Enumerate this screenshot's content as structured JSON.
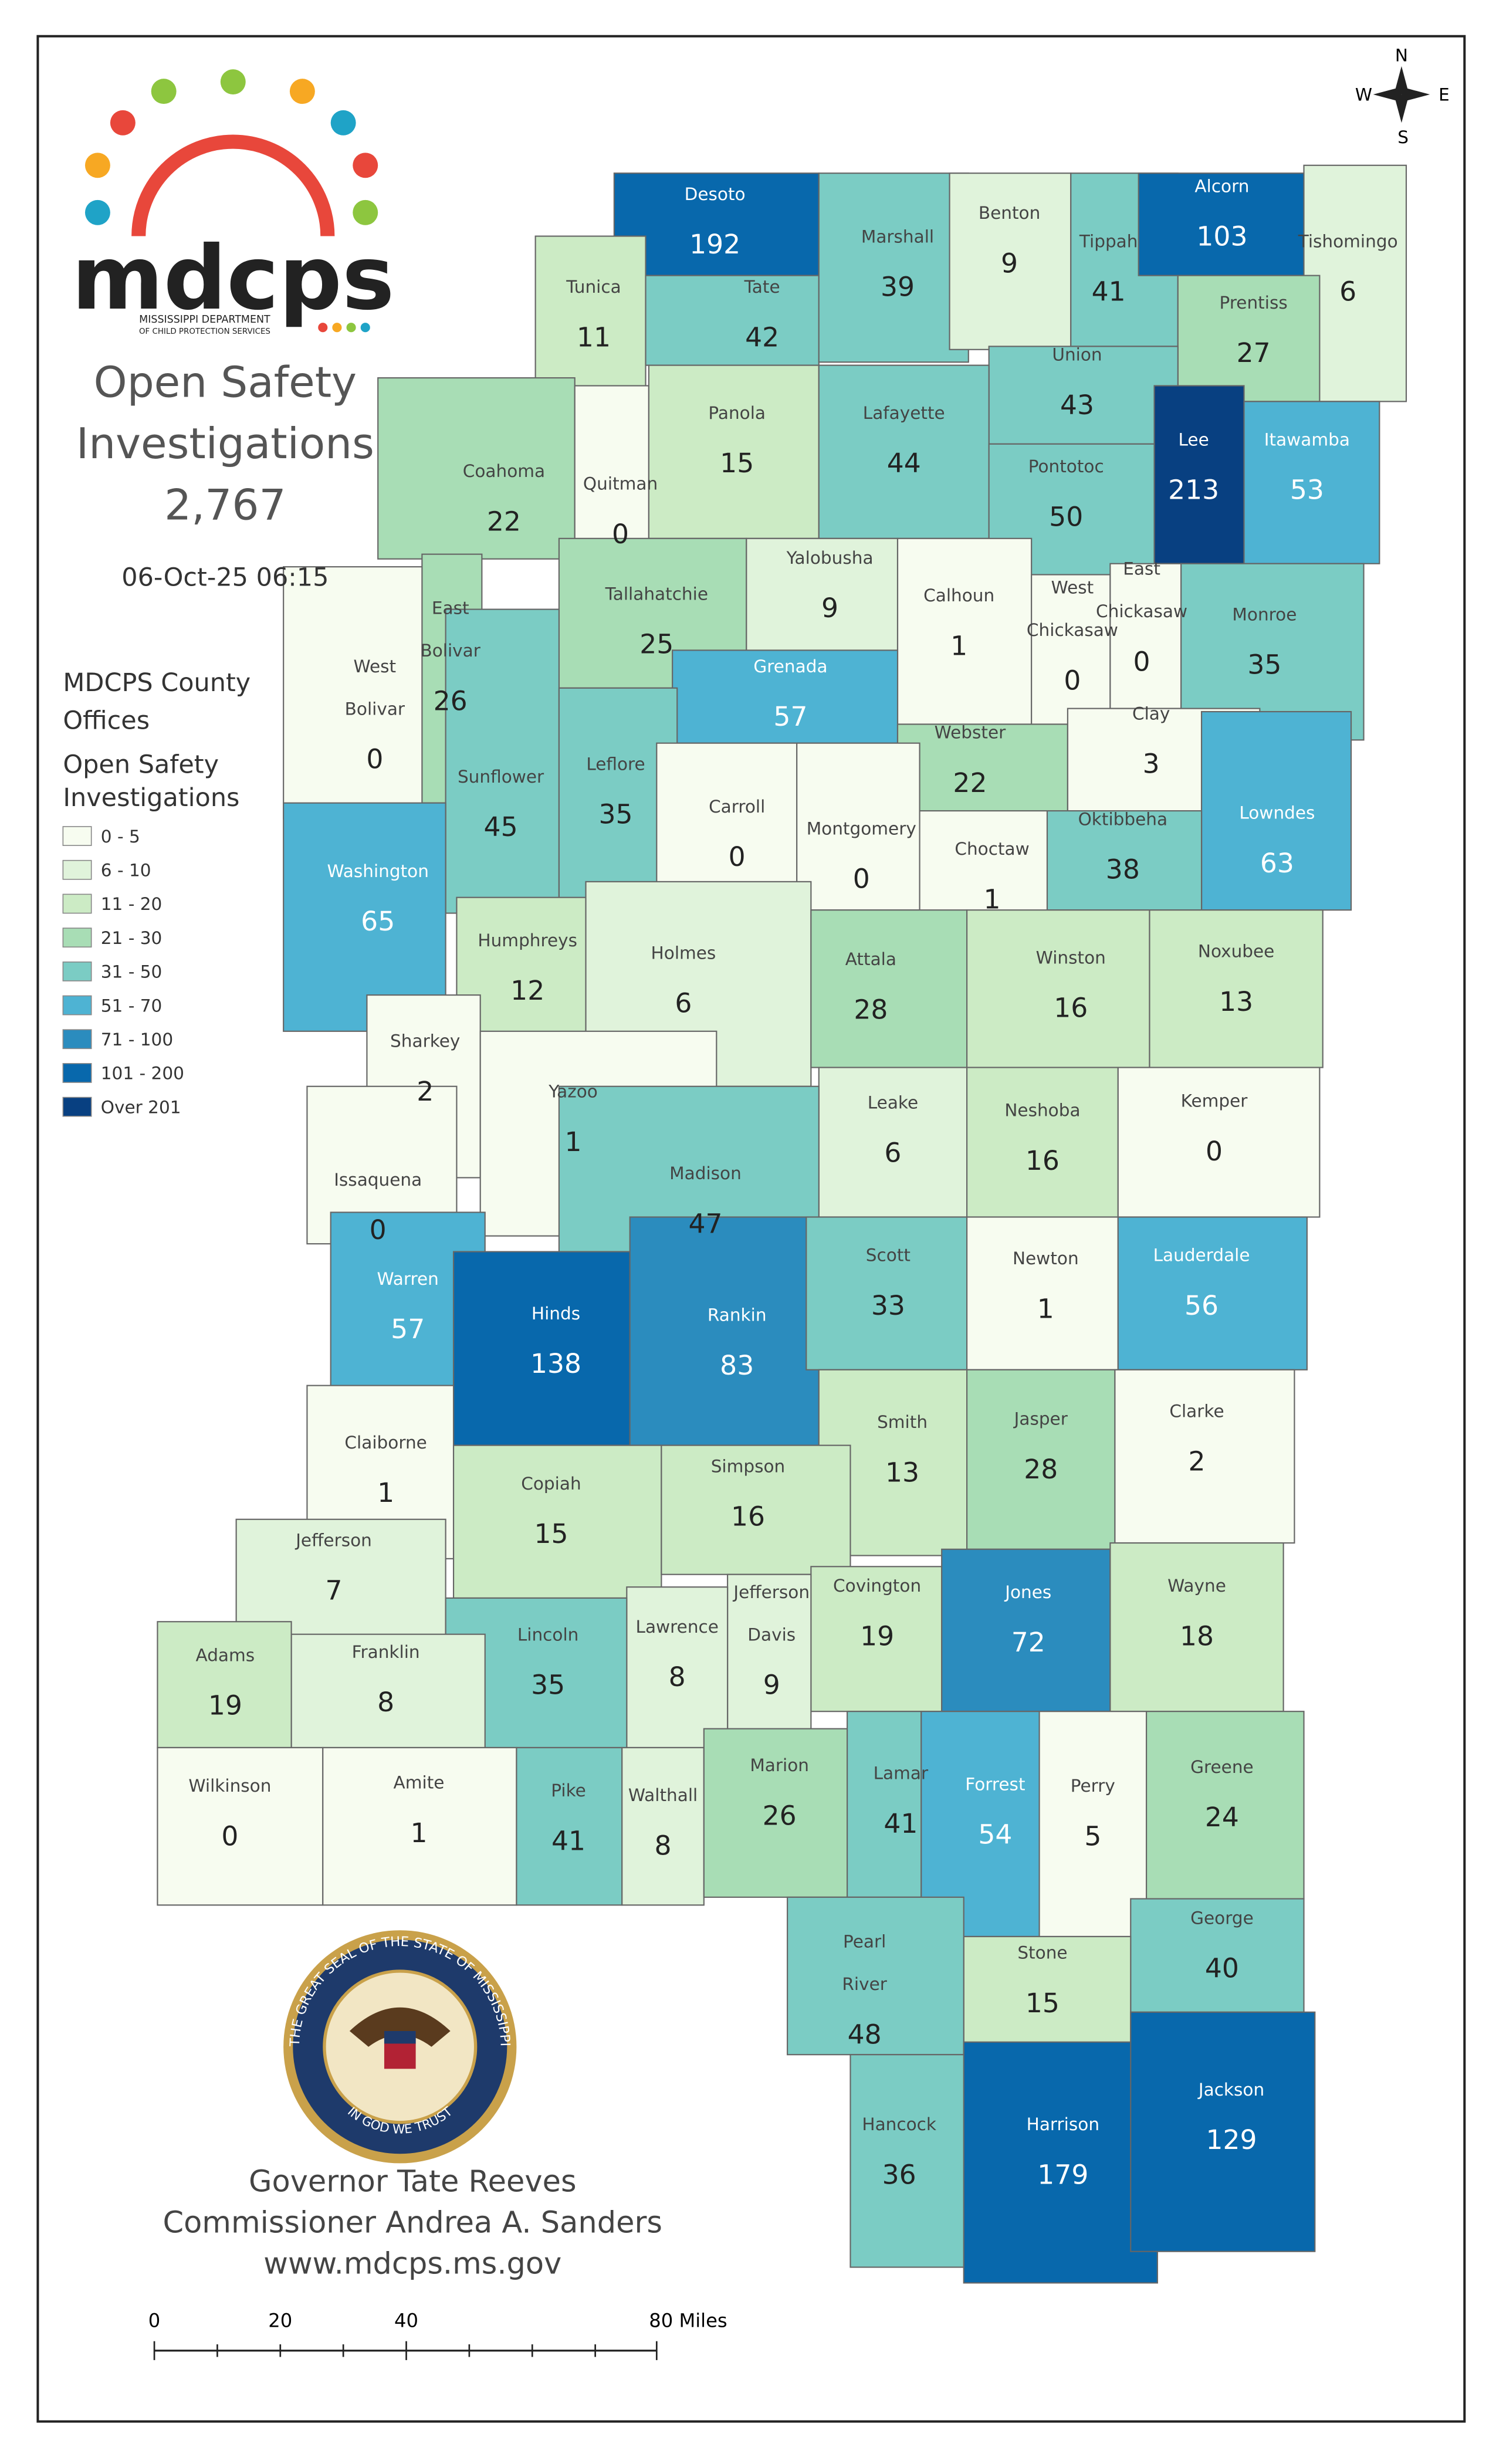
{
  "header": {
    "title_lines": [
      "Open Safety",
      "Investigations"
    ],
    "total": "2,767",
    "timestamp": "06-Oct-25 06:15"
  },
  "logo": {
    "wordmark": "mdcps",
    "line1": "MISSISSIPPI DEPARTMENT",
    "line2": "OF CHILD PROTECTION SERVICES"
  },
  "compass": {
    "n": "N",
    "w": "W",
    "e": "E",
    "s": "S"
  },
  "legend": {
    "title_lines": [
      "MDCPS County",
      "Offices"
    ],
    "subtitle_lines": [
      "Open Safety",
      "Investigations"
    ],
    "bins": [
      {
        "label": "0 - 5",
        "color": "#f7fcf0"
      },
      {
        "label": "6 - 10",
        "color": "#e0f3db"
      },
      {
        "label": "11 - 20",
        "color": "#ccebc5"
      },
      {
        "label": "21 - 30",
        "color": "#a8ddb5"
      },
      {
        "label": "31 - 50",
        "color": "#7bccc4"
      },
      {
        "label": "51 - 70",
        "color": "#4eb3d3"
      },
      {
        "label": "71 - 100",
        "color": "#2b8cbe"
      },
      {
        "label": "101 - 200",
        "color": "#0868ac"
      },
      {
        "label": "Over 201",
        "color": "#084081"
      }
    ]
  },
  "counties": [
    {
      "name": "Desoto",
      "count": 192
    },
    {
      "name": "Tunica",
      "count": 11
    },
    {
      "name": "Tate",
      "count": 42
    },
    {
      "name": "Marshall",
      "count": 39
    },
    {
      "name": "Benton",
      "count": 9
    },
    {
      "name": "Tippah",
      "count": 41
    },
    {
      "name": "Alcorn",
      "count": 103
    },
    {
      "name": "Tishomingo",
      "count": 6
    },
    {
      "name": "Prentiss",
      "count": 27
    },
    {
      "name": "Union",
      "count": 43
    },
    {
      "name": "Lee",
      "count": 213
    },
    {
      "name": "Itawamba",
      "count": 53
    },
    {
      "name": "Coahoma",
      "count": 22
    },
    {
      "name": "Quitman",
      "count": 0
    },
    {
      "name": "Panola",
      "count": 15
    },
    {
      "name": "Lafayette",
      "count": 44
    },
    {
      "name": "Pontotoc",
      "count": 50
    },
    {
      "name": "Tallahatchie",
      "count": 25
    },
    {
      "name": "Yalobusha",
      "count": 9
    },
    {
      "name": "Calhoun",
      "count": 1
    },
    {
      "name": [
        "East",
        "Bolivar"
      ],
      "count": 26
    },
    {
      "name": [
        "West",
        "Bolivar"
      ],
      "count": 0
    },
    {
      "name": [
        "West",
        "Chickasaw"
      ],
      "count": 0
    },
    {
      "name": [
        "East",
        "Chickasaw"
      ],
      "count": 0
    },
    {
      "name": "Monroe",
      "count": 35
    },
    {
      "name": "Grenada",
      "count": 57
    },
    {
      "name": "Sunflower",
      "count": 45
    },
    {
      "name": "Leflore",
      "count": 35
    },
    {
      "name": "Webster",
      "count": 22
    },
    {
      "name": "Clay",
      "count": 3
    },
    {
      "name": "Lowndes",
      "count": 63
    },
    {
      "name": "Carroll",
      "count": 0
    },
    {
      "name": "Montgomery",
      "count": 0
    },
    {
      "name": "Choctaw",
      "count": 1
    },
    {
      "name": "Oktibbeha",
      "count": 38
    },
    {
      "name": "Washington",
      "count": 65
    },
    {
      "name": "Humphreys",
      "count": 12
    },
    {
      "name": "Holmes",
      "count": 6
    },
    {
      "name": "Attala",
      "count": 28
    },
    {
      "name": "Winston",
      "count": 16
    },
    {
      "name": "Noxubee",
      "count": 13
    },
    {
      "name": "Sharkey",
      "count": 2
    },
    {
      "name": "Yazoo",
      "count": 1
    },
    {
      "name": "Issaquena",
      "count": 0
    },
    {
      "name": "Leake",
      "count": 6
    },
    {
      "name": "Neshoba",
      "count": 16
    },
    {
      "name": "Kemper",
      "count": 0
    },
    {
      "name": "Madison",
      "count": 47
    },
    {
      "name": "Warren",
      "count": 57
    },
    {
      "name": "Hinds",
      "count": 138
    },
    {
      "name": "Rankin",
      "count": 83
    },
    {
      "name": "Scott",
      "count": 33
    },
    {
      "name": "Newton",
      "count": 1
    },
    {
      "name": "Lauderdale",
      "count": 56
    },
    {
      "name": "Smith",
      "count": 13
    },
    {
      "name": "Jasper",
      "count": 28
    },
    {
      "name": "Clarke",
      "count": 2
    },
    {
      "name": "Claiborne",
      "count": 1
    },
    {
      "name": "Copiah",
      "count": 15
    },
    {
      "name": "Simpson",
      "count": 16
    },
    {
      "name": "Jefferson",
      "count": 7
    },
    {
      "name": "Covington",
      "count": 19
    },
    {
      "name": "Jones",
      "count": 72
    },
    {
      "name": "Wayne",
      "count": 18
    },
    {
      "name": [
        "Jefferson",
        "Davis"
      ],
      "count": 9
    },
    {
      "name": "Lawrence",
      "count": 8
    },
    {
      "name": "Lincoln",
      "count": 35
    },
    {
      "name": "Franklin",
      "count": 8
    },
    {
      "name": "Adams",
      "count": 19
    },
    {
      "name": "Wilkinson",
      "count": 0
    },
    {
      "name": "Amite",
      "count": 1
    },
    {
      "name": "Pike",
      "count": 41
    },
    {
      "name": "Walthall",
      "count": 8
    },
    {
      "name": "Marion",
      "count": 26
    },
    {
      "name": "Lamar",
      "count": 41
    },
    {
      "name": "Forrest",
      "count": 54
    },
    {
      "name": "Perry",
      "count": 5
    },
    {
      "name": "Greene",
      "count": 24
    },
    {
      "name": "George",
      "count": 40
    },
    {
      "name": "Stone",
      "count": 15
    },
    {
      "name": [
        "Pearl",
        "River"
      ],
      "count": 48
    },
    {
      "name": "Hancock",
      "count": 36
    },
    {
      "name": "Harrison",
      "count": 179
    },
    {
      "name": "Jackson",
      "count": 129
    }
  ],
  "seal": {
    "ring": "THE GREAT SEAL OF THE STATE OF MISSISSIPPI",
    "motto": "IN GOD WE TRUST"
  },
  "footer": {
    "governor": "Governor Tate Reeves",
    "commissioner": "Commissioner Andrea A. Sanders",
    "website": "www.mdcps.ms.gov"
  },
  "scale_bar": {
    "labels": [
      "0",
      "20",
      "40",
      "80 Miles"
    ]
  }
}
